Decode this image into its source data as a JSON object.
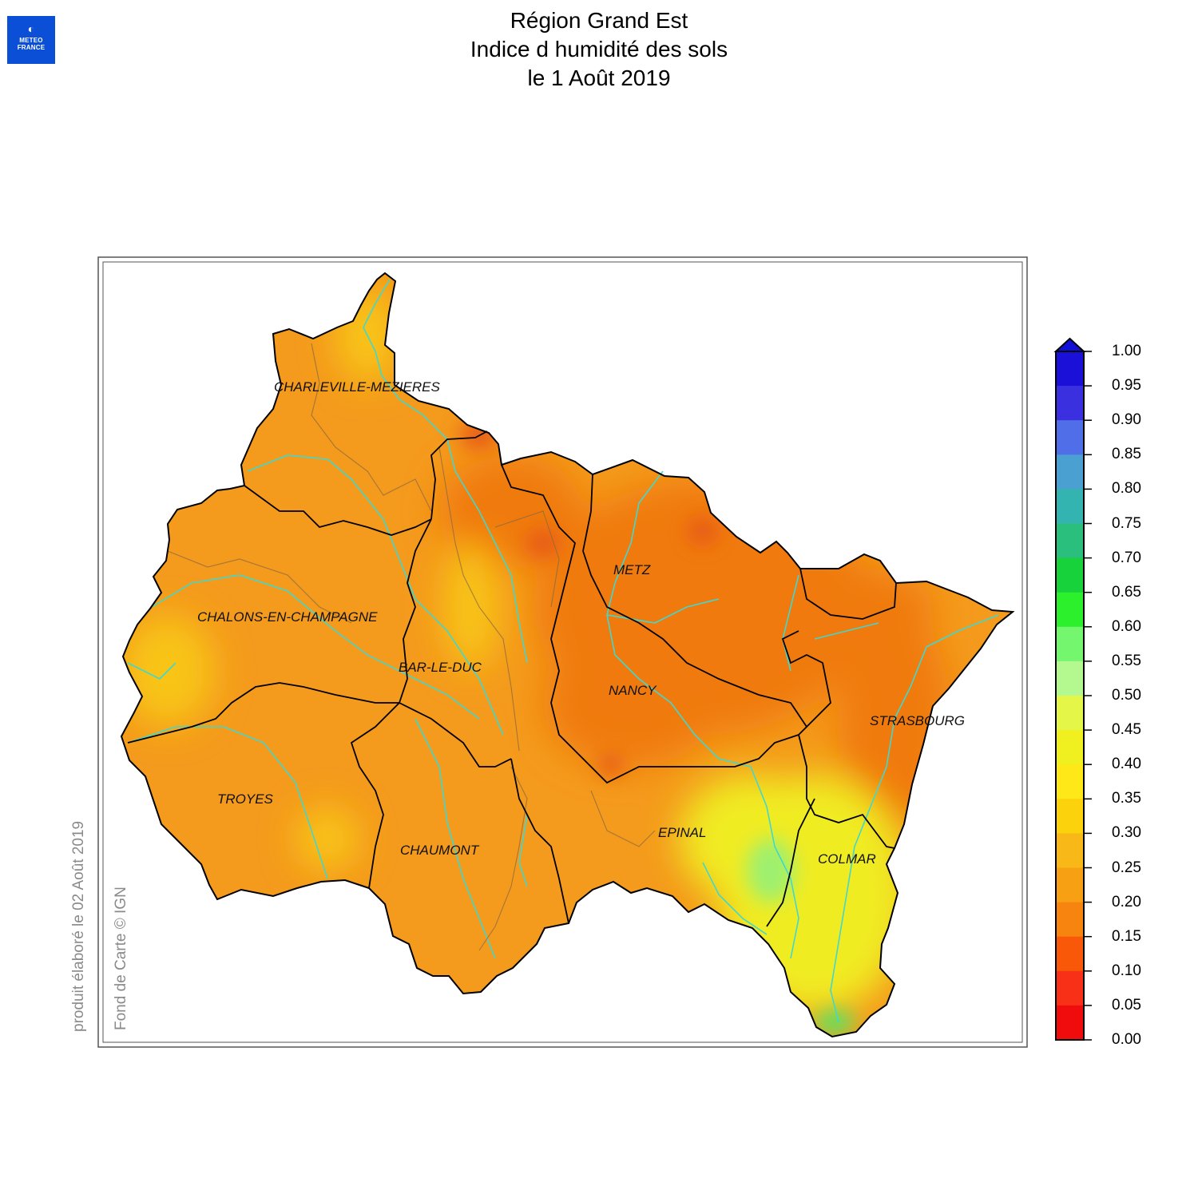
{
  "logo": {
    "mark": "◐",
    "line1": "METEO",
    "line2": "FRANCE"
  },
  "title": {
    "line1": "Région Grand Est",
    "line2": "Indice d humidité des sols",
    "line3": "le 1 Août 2019"
  },
  "side_notes": {
    "produced": "produit élaboré le 02 Août 2019",
    "basemap": "Fond de Carte © IGN"
  },
  "cities": [
    {
      "name": "CHARLEVILLE-MEZIERES"
    },
    {
      "name": "METZ"
    },
    {
      "name": "CHALONS-EN-CHAMPAGNE"
    },
    {
      "name": "BAR-LE-DUC"
    },
    {
      "name": "NANCY"
    },
    {
      "name": "STRASBOURG"
    },
    {
      "name": "TROYES"
    },
    {
      "name": "EPINAL"
    },
    {
      "name": "CHAUMONT"
    },
    {
      "name": "COLMAR"
    }
  ],
  "legend": {
    "ticks": [
      "1.00",
      "0.95",
      "0.90",
      "0.85",
      "0.80",
      "0.75",
      "0.70",
      "0.65",
      "0.60",
      "0.55",
      "0.50",
      "0.45",
      "0.40",
      "0.35",
      "0.30",
      "0.25",
      "0.20",
      "0.15",
      "0.10",
      "0.05",
      "0.00"
    ],
    "colors": [
      "#1a10d8",
      "#3a30e0",
      "#4f6ee8",
      "#4aa0d0",
      "#34b4b0",
      "#2bbf7e",
      "#18d23c",
      "#2cf02c",
      "#74f66e",
      "#b4f890",
      "#e4f648",
      "#f0f020",
      "#ffe818",
      "#fcd20c",
      "#f8b818",
      "#f8a014",
      "#f88410",
      "#f85808",
      "#f83018",
      "#f00c0c"
    ],
    "over_color": "#1010d8"
  },
  "colors": {
    "region_base": "#f49a1c",
    "drier": "#f07a10",
    "driest": "#e85c12",
    "wetter": "#f8c418",
    "wet": "#f0ec20",
    "wettest": "#60e060",
    "river": "#40d8d0",
    "border": "#000000"
  }
}
